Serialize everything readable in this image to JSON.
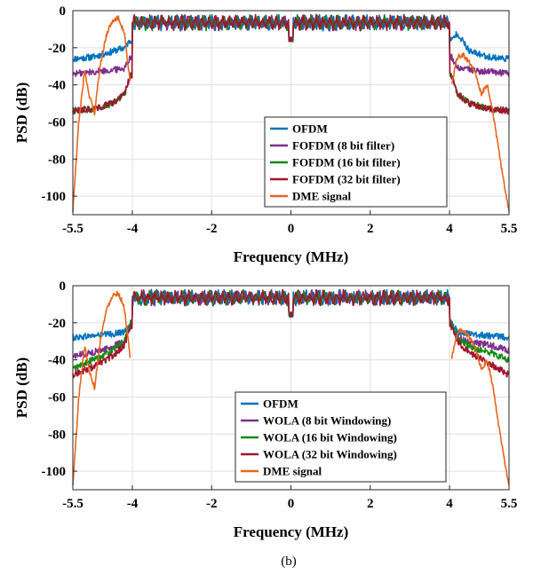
{
  "caption": "(b)",
  "colors": {
    "ofdm": "#0072BD",
    "var8": "#7E2F8E",
    "var16": "#138A13",
    "var32": "#A2142F",
    "dme": "#E8651C"
  },
  "chart_data": [
    {
      "type": "line",
      "title": "",
      "xlabel": "Frequency (MHz)",
      "ylabel": "PSD (dB)",
      "xlim": [
        -5.5,
        5.5
      ],
      "ylim": [
        -110,
        0
      ],
      "xticks": [
        "-5.5",
        "-4",
        "-2",
        "0",
        "2",
        "4",
        "5.5"
      ],
      "xtick_values": [
        -5.5,
        -4,
        -2,
        0,
        2,
        4,
        5.5
      ],
      "yticks": [
        "0",
        "-20",
        "-40",
        "-60",
        "-80",
        "-100"
      ],
      "ytick_values": [
        0,
        -20,
        -40,
        -60,
        -80,
        -100
      ],
      "grid": true,
      "legend_position": "lower-right",
      "inband": {
        "x": [
          -4.0,
          4.0
        ],
        "level_db": -5,
        "fluctuation_db": [
          -12,
          -2
        ],
        "center_dip_db": -17
      },
      "series": [
        {
          "name": "OFDM",
          "color_key": "ofdm",
          "x": [
            -5.5,
            -5.0,
            -4.5,
            -4.2,
            -4.05,
            4.05,
            4.2,
            4.5,
            5.0,
            5.5
          ],
          "y": [
            -26,
            -25,
            -22,
            -20,
            -16,
            -16,
            -12,
            -22,
            -25,
            -26
          ]
        },
        {
          "name": "FOFDM (8 bit filter)",
          "color_key": "var8",
          "x": [
            -5.5,
            -5.0,
            -4.5,
            -4.2,
            -4.05,
            4.05,
            4.2,
            4.5,
            5.0,
            5.5
          ],
          "y": [
            -34,
            -33,
            -32,
            -31,
            -25,
            -25,
            -31,
            -32,
            -33,
            -34
          ]
        },
        {
          "name": "FOFDM (16 bit filter)",
          "color_key": "var16",
          "x": [
            -5.5,
            -5.0,
            -4.5,
            -4.2,
            -4.05,
            4.05,
            4.2,
            4.5,
            5.0,
            5.5
          ],
          "y": [
            -54,
            -53,
            -50,
            -45,
            -35,
            -35,
            -45,
            -50,
            -53,
            -54
          ]
        },
        {
          "name": "FOFDM (32 bit filter)",
          "color_key": "var32",
          "x": [
            -5.5,
            -5.0,
            -4.5,
            -4.2,
            -4.05,
            4.05,
            4.2,
            4.5,
            5.0,
            5.5
          ],
          "y": [
            -54,
            -53,
            -50,
            -45,
            -35,
            -35,
            -45,
            -50,
            -53,
            -54
          ]
        },
        {
          "name": "DME signal",
          "color_key": "dme",
          "x": [
            -5.5,
            -5.35,
            -5.2,
            -5.1,
            -4.95,
            -4.8,
            -4.65,
            -4.5,
            -4.35,
            -4.2,
            -4.05,
            4.05,
            4.2,
            4.35,
            4.5,
            4.65,
            4.8,
            4.95,
            5.1,
            5.2,
            5.35,
            5.5
          ],
          "y": [
            -108,
            -60,
            -32,
            -45,
            -55,
            -28,
            -13,
            -5,
            -4,
            -12,
            -40,
            -40,
            -25,
            -24,
            -28,
            -33,
            -45,
            -40,
            -55,
            -70,
            -90,
            -108
          ]
        }
      ],
      "legend": [
        "OFDM",
        "FOFDM (8 bit filter)",
        "FOFDM (16 bit filter)",
        "FOFDM (32 bit filter)",
        "DME signal"
      ]
    },
    {
      "type": "line",
      "title": "",
      "xlabel": "Frequency (MHz)",
      "ylabel": "PSD (dB)",
      "xlim": [
        -5.5,
        5.5
      ],
      "ylim": [
        -110,
        0
      ],
      "xticks": [
        "-5.5",
        "-4",
        "-2",
        "0",
        "2",
        "4",
        "5.5"
      ],
      "xtick_values": [
        -5.5,
        -4,
        -2,
        0,
        2,
        4,
        5.5
      ],
      "yticks": [
        "0",
        "-20",
        "-40",
        "-60",
        "-80",
        "-100"
      ],
      "ytick_values": [
        0,
        -20,
        -40,
        -60,
        -80,
        -100
      ],
      "grid": true,
      "legend_position": "lower-right",
      "inband": {
        "x": [
          -4.0,
          4.0
        ],
        "level_db": -5,
        "fluctuation_db": [
          -12,
          -2
        ],
        "center_dip_db": -17
      },
      "series": [
        {
          "name": "OFDM",
          "color_key": "ofdm",
          "x": [
            -5.5,
            -5.0,
            -4.5,
            -4.2,
            -4.05,
            4.05,
            4.2,
            4.5,
            5.0,
            5.5
          ],
          "y": [
            -28,
            -27,
            -26,
            -25,
            -20,
            -20,
            -25,
            -26,
            -27,
            -28
          ]
        },
        {
          "name": "WOLA (8 bit Windowing)",
          "color_key": "var8",
          "x": [
            -5.5,
            -5.0,
            -4.5,
            -4.2,
            -4.05,
            4.05,
            4.2,
            4.5,
            5.0,
            5.5
          ],
          "y": [
            -38,
            -36,
            -33,
            -30,
            -22,
            -22,
            -28,
            -30,
            -32,
            -35
          ]
        },
        {
          "name": "WOLA (16 bit Windowing)",
          "color_key": "var16",
          "x": [
            -5.5,
            -5.0,
            -4.5,
            -4.2,
            -4.05,
            4.05,
            4.2,
            4.5,
            5.0,
            5.5
          ],
          "y": [
            -45,
            -40,
            -35,
            -30,
            -20,
            -20,
            -28,
            -33,
            -36,
            -40
          ]
        },
        {
          "name": "WOLA (32 bit Windowing)",
          "color_key": "var32",
          "x": [
            -5.5,
            -5.0,
            -4.5,
            -4.2,
            -4.05,
            4.05,
            4.2,
            4.5,
            5.0,
            5.5
          ],
          "y": [
            -48,
            -44,
            -38,
            -32,
            -22,
            -22,
            -30,
            -36,
            -42,
            -48
          ]
        },
        {
          "name": "DME signal",
          "color_key": "dme",
          "x": [
            -5.5,
            -5.35,
            -5.2,
            -5.1,
            -4.95,
            -4.8,
            -4.65,
            -4.5,
            -4.35,
            -4.2,
            -4.05,
            4.05,
            4.2,
            4.35,
            4.5,
            4.65,
            4.8,
            4.95,
            5.1,
            5.2,
            5.35,
            5.5
          ],
          "y": [
            -108,
            -60,
            -32,
            -45,
            -55,
            -28,
            -13,
            -5,
            -4,
            -12,
            -40,
            -40,
            -25,
            -24,
            -28,
            -33,
            -45,
            -40,
            -55,
            -70,
            -90,
            -108
          ]
        }
      ],
      "legend": [
        "OFDM",
        "WOLA (8 bit Windowing)",
        "WOLA (16 bit Windowing)",
        "WOLA (32 bit Windowing)",
        "DME signal"
      ]
    }
  ]
}
